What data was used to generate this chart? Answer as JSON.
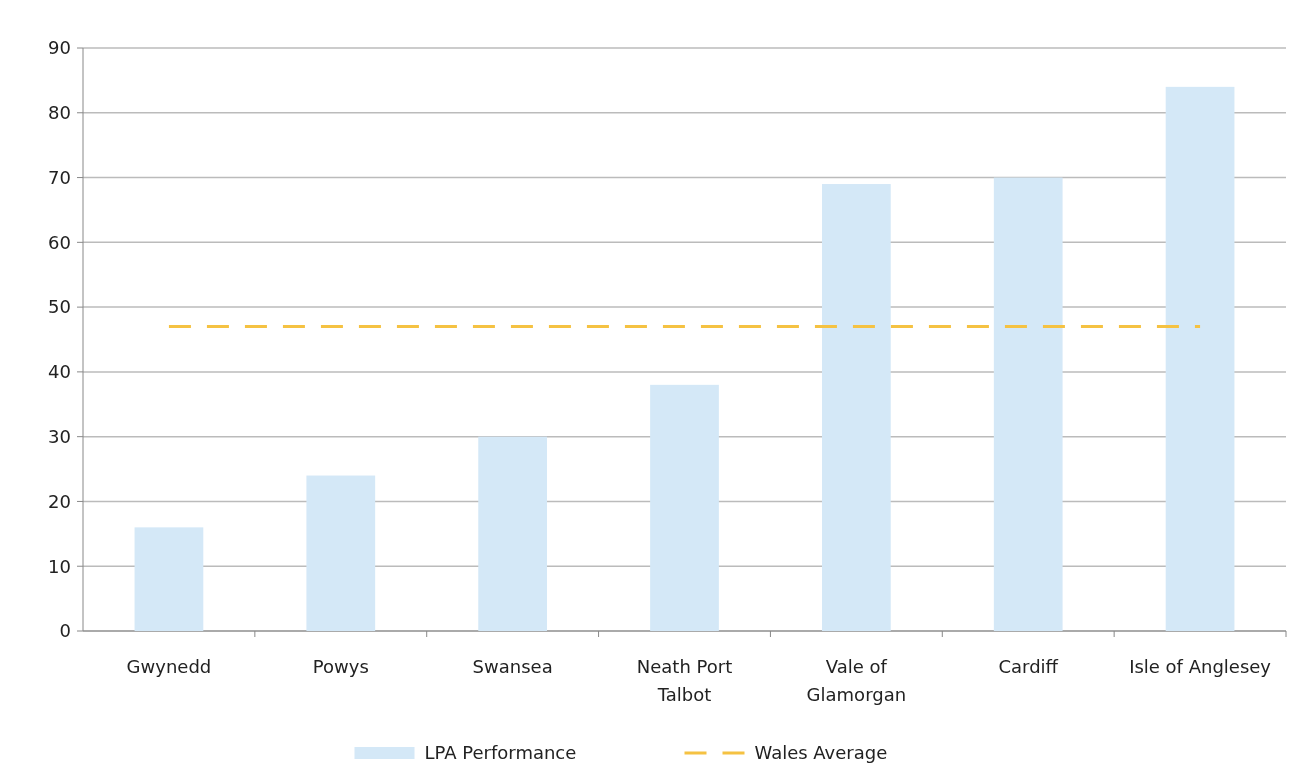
{
  "chart_data": {
    "type": "bar",
    "categories": [
      "Gwynedd",
      "Powys",
      "Swansea",
      "Neath Port Talbot",
      "Vale of Glamorgan",
      "Cardiff",
      "Isle of Anglesey"
    ],
    "series": [
      {
        "name": "LPA Performance",
        "color": "#d4e8f7",
        "values": [
          16,
          24,
          30,
          38,
          69,
          70,
          84
        ]
      },
      {
        "name": "Wales Average",
        "type": "line",
        "color": "#f5c242",
        "line_style": "dashed",
        "values": [
          47,
          47,
          47,
          47,
          47,
          47,
          47
        ]
      }
    ],
    "ylim": [
      0,
      90
    ],
    "yticks": [
      0,
      10,
      20,
      30,
      40,
      50,
      60,
      70,
      80,
      90
    ],
    "grid": "y",
    "legend": "bottom"
  }
}
